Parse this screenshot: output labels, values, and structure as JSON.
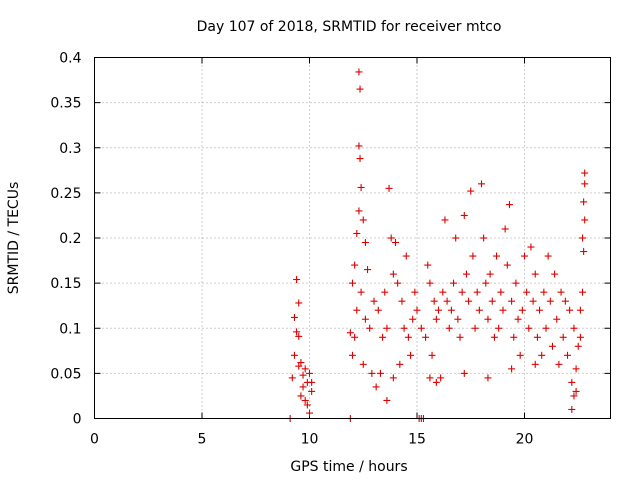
{
  "chart_data": {
    "type": "scatter",
    "title": "Day 107 of 2018, SRMTID for receiver mtco",
    "xlabel": "GPS time / hours",
    "ylabel": "SRMTID / TECUs",
    "xlim": [
      0,
      24
    ],
    "ylim": [
      0,
      0.4
    ],
    "xticks": [
      0,
      5,
      10,
      15,
      20
    ],
    "xtick_labels": [
      "0",
      "5",
      "10",
      "15",
      "20"
    ],
    "yticks": [
      0,
      0.05,
      0.1,
      0.15,
      0.2,
      0.25,
      0.3,
      0.35,
      0.4
    ],
    "ytick_labels": [
      "0",
      "0.05",
      "0.1",
      "0.15",
      "0.2",
      "0.25",
      "0.3",
      "0.35",
      "0.4"
    ],
    "grid": true,
    "marker": "+",
    "color": "#dd0000",
    "series": [
      {
        "name": "SRMTID",
        "points": [
          [
            9.1,
            0.0
          ],
          [
            11.9,
            0.0
          ],
          [
            15.1,
            0.0
          ],
          [
            15.2,
            0.0
          ],
          [
            15.3,
            0.0
          ],
          [
            9.4,
            0.154
          ],
          [
            9.5,
            0.128
          ],
          [
            9.3,
            0.112
          ],
          [
            9.4,
            0.096
          ],
          [
            9.5,
            0.091
          ],
          [
            9.3,
            0.07
          ],
          [
            9.6,
            0.062
          ],
          [
            9.8,
            0.055
          ],
          [
            10.0,
            0.05
          ],
          [
            9.9,
            0.04
          ],
          [
            9.2,
            0.045
          ],
          [
            9.7,
            0.035
          ],
          [
            10.1,
            0.03
          ],
          [
            9.6,
            0.025
          ],
          [
            9.9,
            0.015
          ],
          [
            10.0,
            0.006
          ],
          [
            9.5,
            0.058
          ],
          [
            9.7,
            0.048
          ],
          [
            9.8,
            0.02
          ],
          [
            10.1,
            0.04
          ],
          [
            12.3,
            0.384
          ],
          [
            12.35,
            0.365
          ],
          [
            12.3,
            0.302
          ],
          [
            12.35,
            0.288
          ],
          [
            12.4,
            0.256
          ],
          [
            12.3,
            0.23
          ],
          [
            12.5,
            0.22
          ],
          [
            12.2,
            0.205
          ],
          [
            12.6,
            0.195
          ],
          [
            12.1,
            0.17
          ],
          [
            12.7,
            0.165
          ],
          [
            12.0,
            0.15
          ],
          [
            12.4,
            0.14
          ],
          [
            12.2,
            0.12
          ],
          [
            12.6,
            0.11
          ],
          [
            12.1,
            0.09
          ],
          [
            12.8,
            0.1
          ],
          [
            12.0,
            0.07
          ],
          [
            12.5,
            0.06
          ],
          [
            12.9,
            0.05
          ],
          [
            11.9,
            0.095
          ],
          [
            13.0,
            0.13
          ],
          [
            13.2,
            0.12
          ],
          [
            13.4,
            0.09
          ],
          [
            13.6,
            0.1
          ],
          [
            13.7,
            0.255
          ],
          [
            13.8,
            0.2
          ],
          [
            14.0,
            0.195
          ],
          [
            13.9,
            0.16
          ],
          [
            13.5,
            0.14
          ],
          [
            14.1,
            0.15
          ],
          [
            14.3,
            0.13
          ],
          [
            14.5,
            0.18
          ],
          [
            14.4,
            0.1
          ],
          [
            14.6,
            0.09
          ],
          [
            14.2,
            0.06
          ],
          [
            14.7,
            0.07
          ],
          [
            13.3,
            0.05
          ],
          [
            13.1,
            0.035
          ],
          [
            13.6,
            0.02
          ],
          [
            14.8,
            0.11
          ],
          [
            15.0,
            0.12
          ],
          [
            14.9,
            0.14
          ],
          [
            15.2,
            0.1
          ],
          [
            15.4,
            0.09
          ],
          [
            15.5,
            0.17
          ],
          [
            15.6,
            0.15
          ],
          [
            15.8,
            0.13
          ],
          [
            15.9,
            0.11
          ],
          [
            15.7,
            0.07
          ],
          [
            15.6,
            0.045
          ],
          [
            16.0,
            0.12
          ],
          [
            16.2,
            0.14
          ],
          [
            16.3,
            0.22
          ],
          [
            16.4,
            0.13
          ],
          [
            16.5,
            0.1
          ],
          [
            16.7,
            0.15
          ],
          [
            16.8,
            0.2
          ],
          [
            16.6,
            0.12
          ],
          [
            16.9,
            0.11
          ],
          [
            17.0,
            0.09
          ],
          [
            17.1,
            0.14
          ],
          [
            17.2,
            0.225
          ],
          [
            17.3,
            0.16
          ],
          [
            17.4,
            0.13
          ],
          [
            17.5,
            0.252
          ],
          [
            17.6,
            0.18
          ],
          [
            17.7,
            0.1
          ],
          [
            17.8,
            0.14
          ],
          [
            17.9,
            0.12
          ],
          [
            18.0,
            0.26
          ],
          [
            18.1,
            0.2
          ],
          [
            18.2,
            0.15
          ],
          [
            18.3,
            0.11
          ],
          [
            18.4,
            0.16
          ],
          [
            18.5,
            0.13
          ],
          [
            18.6,
            0.09
          ],
          [
            18.7,
            0.18
          ],
          [
            18.8,
            0.1
          ],
          [
            18.9,
            0.14
          ],
          [
            19.0,
            0.12
          ],
          [
            19.1,
            0.21
          ],
          [
            19.2,
            0.17
          ],
          [
            19.3,
            0.237
          ],
          [
            19.4,
            0.13
          ],
          [
            19.5,
            0.09
          ],
          [
            19.6,
            0.15
          ],
          [
            19.7,
            0.11
          ],
          [
            19.8,
            0.07
          ],
          [
            19.9,
            0.12
          ],
          [
            20.0,
            0.18
          ],
          [
            20.1,
            0.14
          ],
          [
            20.2,
            0.1
          ],
          [
            20.3,
            0.19
          ],
          [
            20.4,
            0.13
          ],
          [
            20.5,
            0.16
          ],
          [
            20.6,
            0.09
          ],
          [
            20.7,
            0.12
          ],
          [
            20.8,
            0.07
          ],
          [
            20.9,
            0.14
          ],
          [
            21.0,
            0.1
          ],
          [
            21.1,
            0.18
          ],
          [
            21.2,
            0.13
          ],
          [
            21.3,
            0.08
          ],
          [
            21.4,
            0.16
          ],
          [
            21.5,
            0.11
          ],
          [
            21.6,
            0.06
          ],
          [
            21.7,
            0.14
          ],
          [
            21.8,
            0.09
          ],
          [
            21.9,
            0.13
          ],
          [
            22.0,
            0.07
          ],
          [
            22.1,
            0.12
          ],
          [
            22.2,
            0.04
          ],
          [
            22.3,
            0.1
          ],
          [
            22.4,
            0.03
          ],
          [
            22.2,
            0.01
          ],
          [
            22.5,
            0.08
          ],
          [
            22.6,
            0.12
          ],
          [
            22.7,
            0.14
          ],
          [
            22.8,
            0.272
          ],
          [
            22.8,
            0.26
          ],
          [
            22.75,
            0.24
          ],
          [
            22.8,
            0.22
          ],
          [
            22.7,
            0.2
          ],
          [
            22.75,
            0.185
          ],
          [
            22.6,
            0.09
          ],
          [
            22.4,
            0.055
          ],
          [
            22.3,
            0.025
          ],
          [
            16.1,
            0.045
          ],
          [
            17.2,
            0.05
          ],
          [
            18.3,
            0.045
          ],
          [
            19.4,
            0.055
          ],
          [
            20.5,
            0.06
          ],
          [
            15.9,
            0.04
          ],
          [
            13.9,
            0.045
          ]
        ]
      }
    ]
  }
}
